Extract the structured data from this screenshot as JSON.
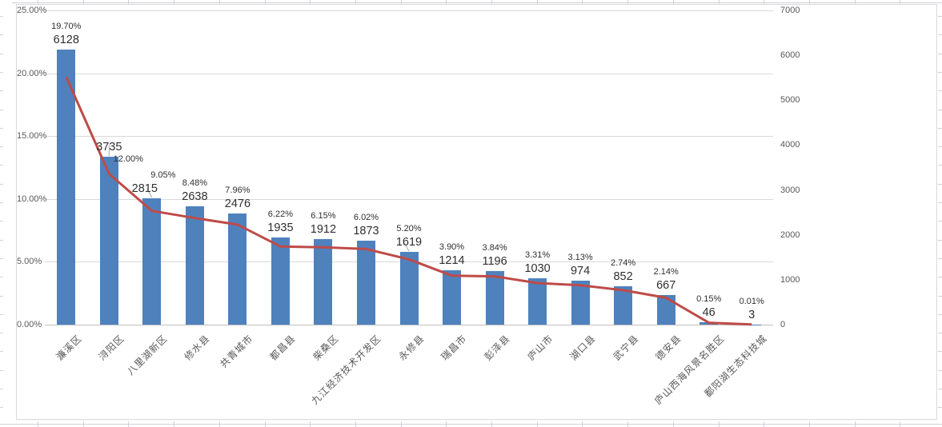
{
  "chart_data": {
    "type": "combo-bar-line",
    "title": "",
    "legend": "none",
    "grid": "horizontal",
    "categories": [
      "濂溪区",
      "浔阳区",
      "八里湖新区",
      "修水县",
      "共青城市",
      "都昌县",
      "柴桑区",
      "九江经济技术开发区",
      "永修县",
      "瑞昌市",
      "彭泽县",
      "庐山市",
      "湖口县",
      "武宁县",
      "德安县",
      "庐山西海风景名胜区",
      "鄱阳湖生态科技城"
    ],
    "bar_series": {
      "axis": "right",
      "values": [
        6128,
        3735,
        2815,
        2638,
        2476,
        1935,
        1912,
        1873,
        1619,
        1214,
        1196,
        1030,
        974,
        852,
        667,
        46,
        3
      ],
      "labels": [
        "6128",
        "3735",
        "2815",
        "2638",
        "2476",
        "1935",
        "1912",
        "1873",
        "1619",
        "1214",
        "1196",
        "1030",
        "974",
        "852",
        "667",
        "46",
        "3"
      ]
    },
    "line_series": {
      "axis": "left",
      "values_pct": [
        19.7,
        12.0,
        9.05,
        8.48,
        7.96,
        6.22,
        6.15,
        6.02,
        5.2,
        3.9,
        3.84,
        3.31,
        3.13,
        2.74,
        2.14,
        0.15,
        0.01
      ],
      "labels": [
        "19.70%",
        "12.00%",
        "9.05%",
        "8.48%",
        "7.96%",
        "6.22%",
        "6.15%",
        "6.02%",
        "5.20%",
        "3.90%",
        "3.84%",
        "3.31%",
        "3.13%",
        "2.74%",
        "2.14%",
        "0.15%",
        "0.01%"
      ]
    },
    "left_axis": {
      "min": 0,
      "max": 25,
      "step": 5,
      "ticks": [
        "0.00%",
        "5.00%",
        "10.00%",
        "15.00%",
        "20.00%",
        "25.00%"
      ]
    },
    "right_axis": {
      "min": 0,
      "max": 7000,
      "step": 1000,
      "ticks": [
        "0",
        "1000",
        "2000",
        "3000",
        "4000",
        "5000",
        "6000",
        "7000"
      ]
    },
    "colors": {
      "bar": "#4f81bd",
      "line": "#be4b48",
      "gridline": "#d9d9d9",
      "axis_line": "#bfbfbf",
      "axis_text": "#595959",
      "label_text": "#2f2f2f",
      "leader_line": "#a9a9a9",
      "worksheet_grid": "#d2d0da",
      "chart_border": "#d9d9d9"
    }
  }
}
